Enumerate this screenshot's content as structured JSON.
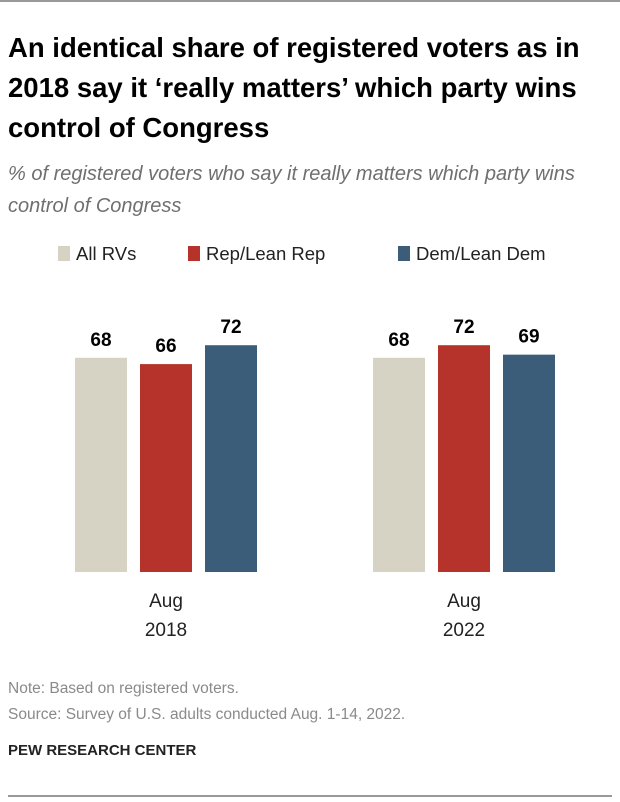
{
  "chart_data": {
    "type": "bar",
    "title": "An identical share of registered voters as in 2018 say it ‘really matters’ which party wins control of Congress",
    "subtitle": "% of registered voters who say it really matters which party wins control of Congress",
    "categories": [
      "Aug\n2018",
      "Aug\n2022"
    ],
    "series": [
      {
        "name": "All RVs",
        "color": "#d6d2c4",
        "values": [
          68,
          68
        ]
      },
      {
        "name": "Rep/Lean Rep",
        "color": "#b5332a",
        "values": [
          66,
          72
        ]
      },
      {
        "name": "Dem/Lean Dem",
        "color": "#3b5d7a",
        "values": [
          72,
          69
        ]
      }
    ],
    "note": "Note: Based on registered voters.",
    "source": "Source: Survey of U.S. adults conducted Aug. 1-14, 2022.",
    "credit": "PEW RESEARCH CENTER"
  }
}
